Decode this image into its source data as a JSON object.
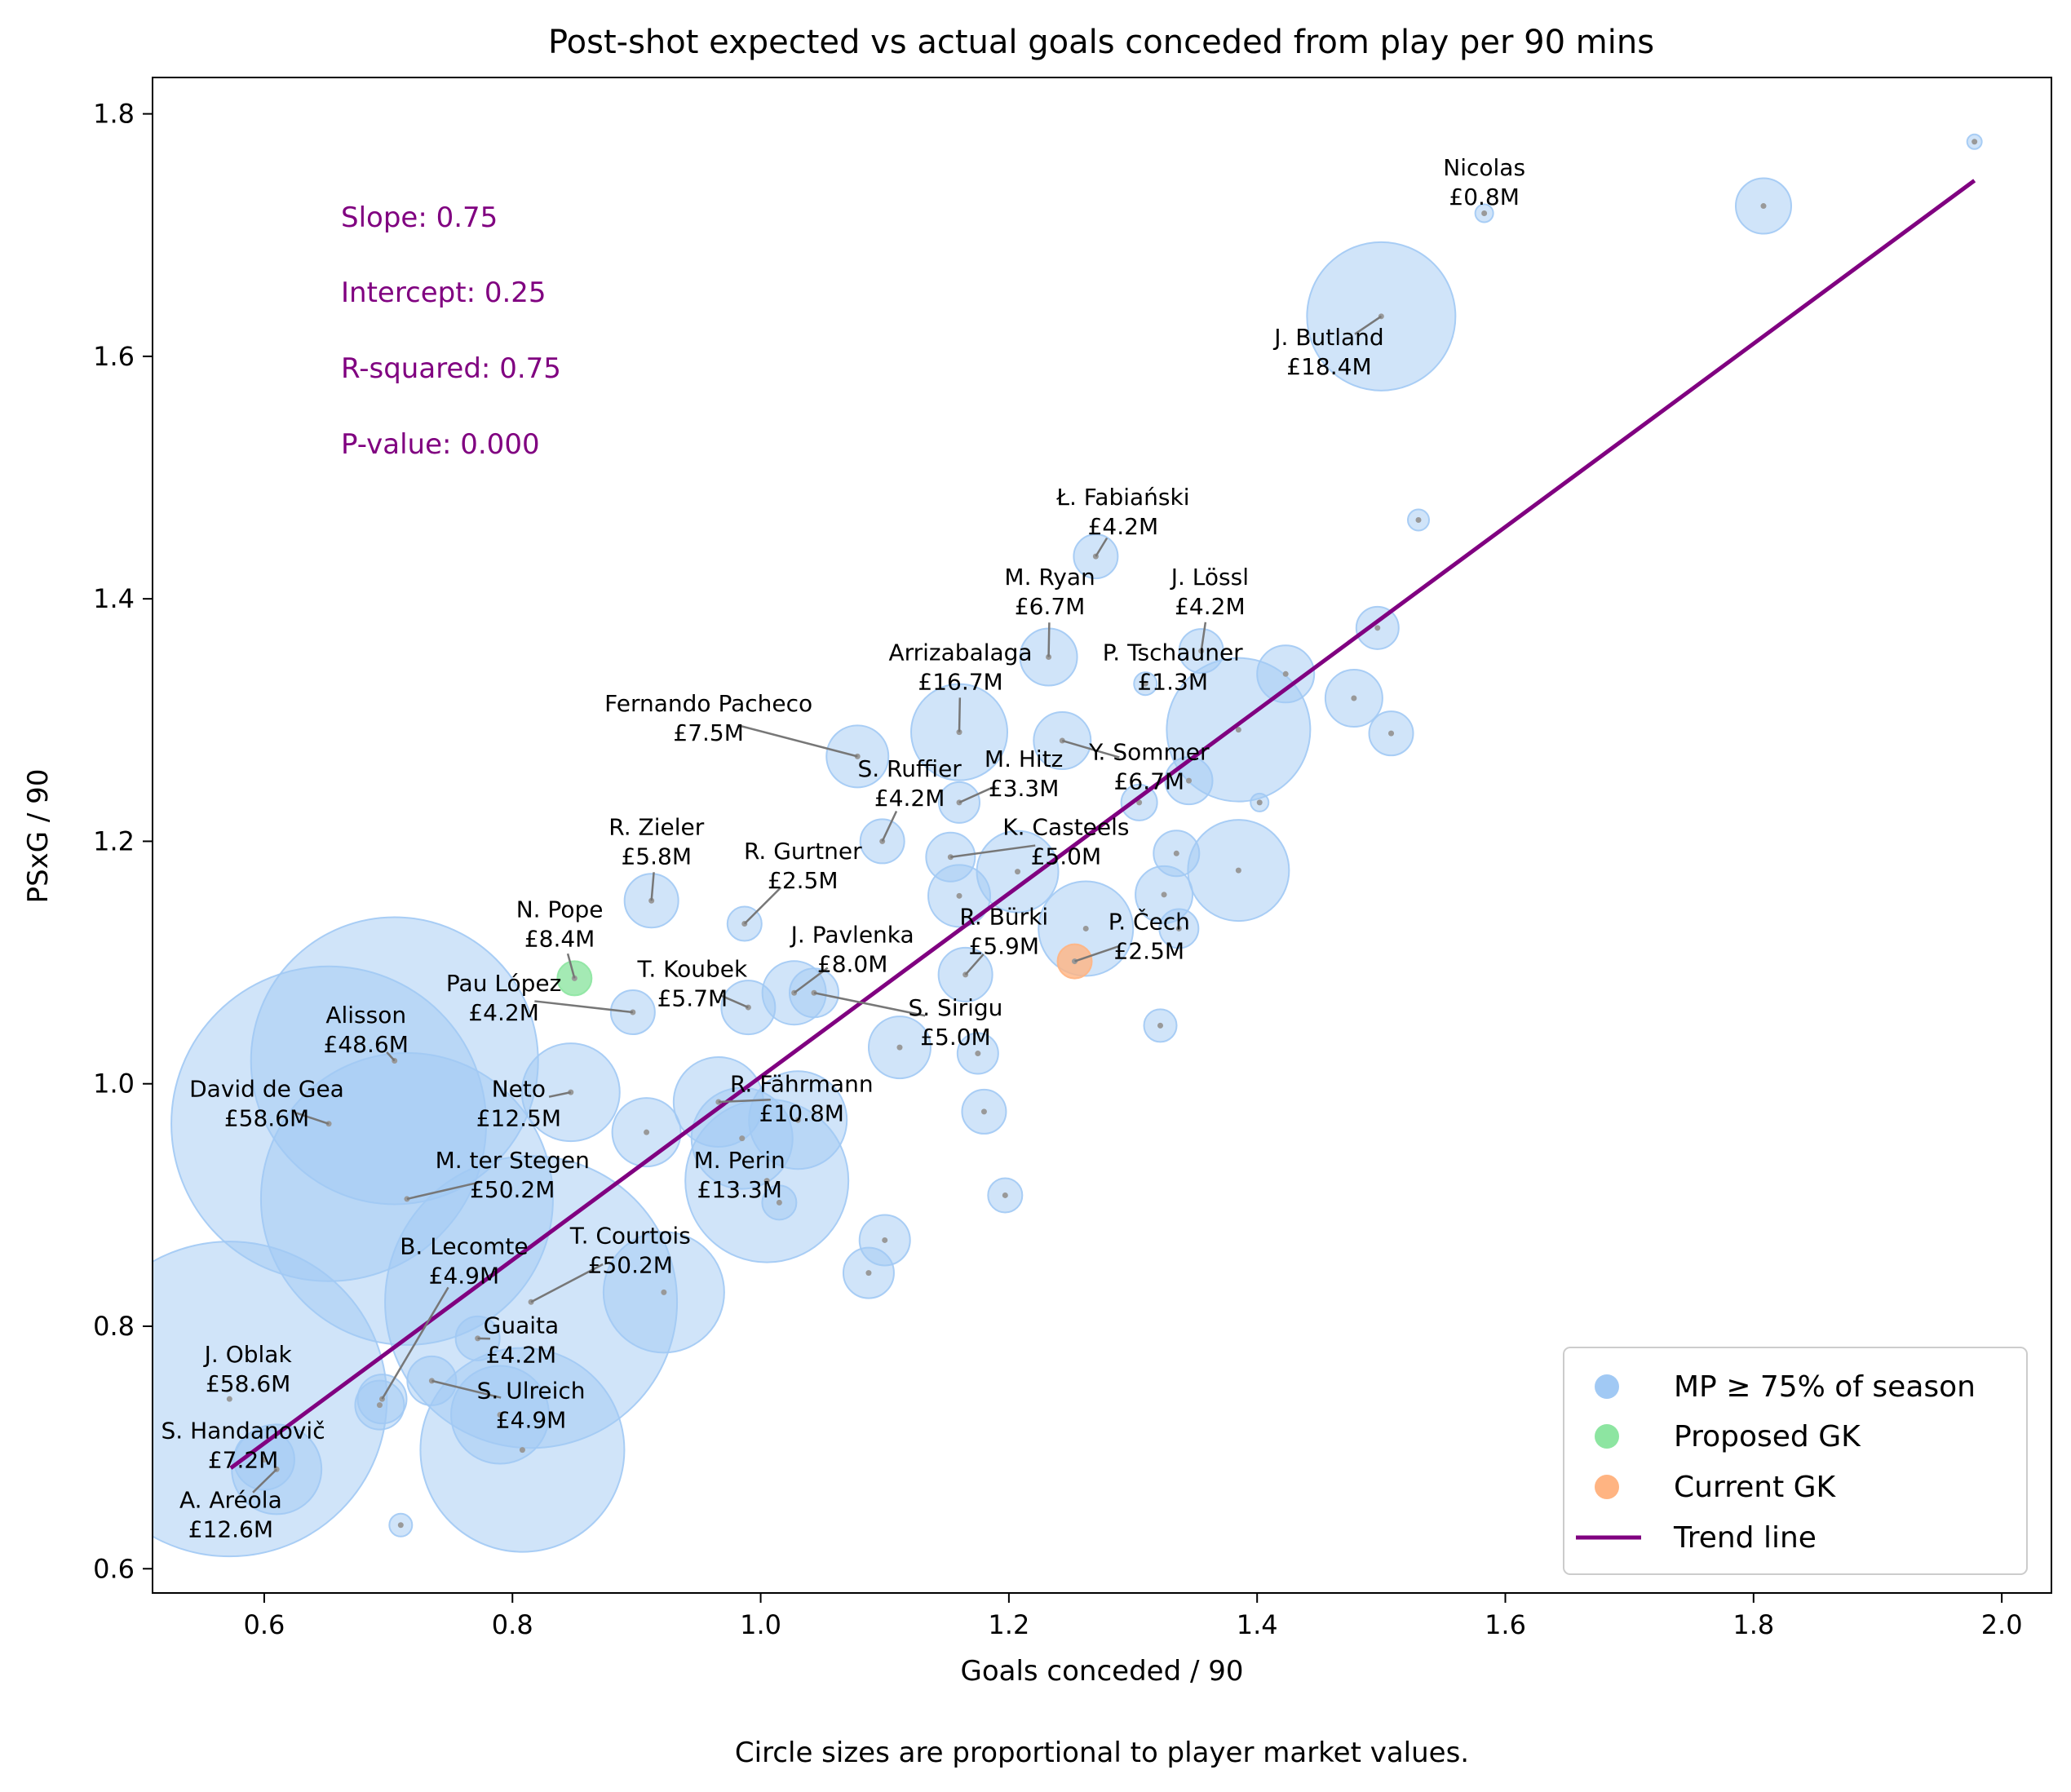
{
  "chart_data": {
    "type": "scatter",
    "title": "Post-shot expected vs actual goals conceded from play per 90 mins",
    "xlabel": "Goals conceded / 90",
    "ylabel": "PSxG / 90",
    "caption": "Circle sizes are proportional to player market values.",
    "xlim": [
      0.51,
      2.04
    ],
    "ylim": [
      0.58,
      1.83
    ],
    "xticks": [
      "0.6",
      "0.8",
      "1.0",
      "1.2",
      "1.4",
      "1.6",
      "1.8",
      "2.0"
    ],
    "yticks": [
      "0.6",
      "0.8",
      "1.0",
      "1.2",
      "1.4",
      "1.6",
      "1.8"
    ],
    "stats": [
      {
        "label": "Slope: 0.75"
      },
      {
        "label": "Intercept: 0.25"
      },
      {
        "label": "R-squared: 0.75"
      },
      {
        "label": "P-value: 0.000"
      }
    ],
    "trend_line": {
      "name": "Trend line",
      "color": "#800080",
      "x": [
        0.573,
        1.978
      ],
      "y": [
        0.683,
        1.745
      ]
    },
    "legend": [
      {
        "label": "MP ≥ 75% of season",
        "color": "#a1c9f4",
        "kind": "dot"
      },
      {
        "label": "Proposed GK",
        "color": "#8de5a1",
        "kind": "dot"
      },
      {
        "label": "Current GK",
        "color": "#ffb482",
        "kind": "dot"
      },
      {
        "label": "Trend line",
        "color": "#800080",
        "kind": "line"
      }
    ],
    "colors": {
      "regular": "#a1c9f4",
      "proposed": "#8de5a1",
      "current": "#ffb482",
      "trend": "#800080"
    },
    "labeled_points": [
      {
        "name": "Nicolas",
        "value": "£0.8M",
        "x": 1.583,
        "y": 1.718,
        "r": 11,
        "lx": 1.583,
        "ly": 1.744,
        "group": "regular"
      },
      {
        "name": "J. Butland",
        "value": "£18.4M",
        "x": 1.5,
        "y": 1.633,
        "r": 91,
        "lx": 1.458,
        "ly": 1.604,
        "group": "regular"
      },
      {
        "name": "Ł. Fabiański",
        "value": "£4.2M",
        "x": 1.27,
        "y": 1.435,
        "r": 27,
        "lx": 1.292,
        "ly": 1.472,
        "group": "regular"
      },
      {
        "name": "M. Ryan",
        "value": "£6.7M",
        "x": 1.232,
        "y": 1.352,
        "r": 35,
        "lx": 1.233,
        "ly": 1.406,
        "group": "regular"
      },
      {
        "name": "J. Lössl",
        "value": "£4.2M",
        "x": 1.355,
        "y": 1.357,
        "r": 27,
        "lx": 1.362,
        "ly": 1.406,
        "group": "regular"
      },
      {
        "name": "Arrizabalaga",
        "value": "£16.7M",
        "x": 1.16,
        "y": 1.29,
        "r": 59,
        "lx": 1.161,
        "ly": 1.344,
        "group": "regular"
      },
      {
        "name": "P. Tschauner",
        "value": "£1.3M",
        "x": 1.31,
        "y": 1.33,
        "r": 14,
        "lx": 1.332,
        "ly": 1.344,
        "group": "regular"
      },
      {
        "name": "Fernando Pacheco",
        "value": "£7.5M",
        "x": 1.078,
        "y": 1.27,
        "r": 38,
        "lx": 0.958,
        "ly": 1.302,
        "group": "regular"
      },
      {
        "name": "Y. Sommer",
        "value": "£6.7M",
        "x": 1.243,
        "y": 1.283,
        "r": 35,
        "lx": 1.313,
        "ly": 1.262,
        "group": "regular"
      },
      {
        "name": "S. Ruffier",
        "value": "£4.2M",
        "x": 1.098,
        "y": 1.2,
        "r": 27,
        "lx": 1.12,
        "ly": 1.248,
        "group": "regular"
      },
      {
        "name": "M. Hitz",
        "value": "£3.3M",
        "x": 1.16,
        "y": 1.232,
        "r": 25,
        "lx": 1.212,
        "ly": 1.256,
        "group": "regular"
      },
      {
        "name": "R. Zieler",
        "value": "£5.8M",
        "x": 0.912,
        "y": 1.151,
        "r": 33,
        "lx": 0.916,
        "ly": 1.2,
        "group": "regular"
      },
      {
        "name": "K. Casteels",
        "value": "£5.0M",
        "x": 1.153,
        "y": 1.187,
        "r": 30,
        "lx": 1.246,
        "ly": 1.2,
        "group": "regular"
      },
      {
        "name": "R. Gurtner",
        "value": "£2.5M",
        "x": 0.987,
        "y": 1.132,
        "r": 21,
        "lx": 1.034,
        "ly": 1.18,
        "group": "regular"
      },
      {
        "name": "N. Pope",
        "value": "£8.4M",
        "x": 0.85,
        "y": 1.087,
        "r": 21,
        "lx": 0.838,
        "ly": 1.132,
        "group": "proposed"
      },
      {
        "name": "R. Bürki",
        "value": "£5.9M",
        "x": 1.165,
        "y": 1.09,
        "r": 33,
        "lx": 1.196,
        "ly": 1.126,
        "group": "regular"
      },
      {
        "name": "P. Čech",
        "value": "£2.5M",
        "x": 1.253,
        "y": 1.101,
        "r": 21,
        "lx": 1.313,
        "ly": 1.122,
        "group": "current"
      },
      {
        "name": "J. Pavlenka",
        "value": "£8.0M",
        "x": 1.027,
        "y": 1.075,
        "r": 39,
        "lx": 1.074,
        "ly": 1.111,
        "group": "regular"
      },
      {
        "name": "T. Koubek",
        "value": "£5.7M",
        "x": 0.99,
        "y": 1.063,
        "r": 33,
        "lx": 0.945,
        "ly": 1.083,
        "group": "regular"
      },
      {
        "name": "Pau López",
        "value": "£4.2M",
        "x": 0.897,
        "y": 1.059,
        "r": 27,
        "lx": 0.793,
        "ly": 1.071,
        "group": "regular"
      },
      {
        "name": "S. Sirigu",
        "value": "£5.0M",
        "x": 1.043,
        "y": 1.075,
        "r": 30,
        "lx": 1.157,
        "ly": 1.051,
        "group": "regular"
      },
      {
        "name": "Alisson",
        "value": "£48.6M",
        "x": 0.705,
        "y": 1.019,
        "r": 176,
        "lx": 0.682,
        "ly": 1.045,
        "group": "regular"
      },
      {
        "name": "David de Gea",
        "value": "£58.6M",
        "x": 0.652,
        "y": 0.967,
        "r": 193,
        "lx": 0.602,
        "ly": 0.984,
        "group": "regular"
      },
      {
        "name": "Neto",
        "value": "£12.5M",
        "x": 0.847,
        "y": 0.993,
        "r": 60,
        "lx": 0.805,
        "ly": 0.984,
        "group": "regular"
      },
      {
        "name": "R. Fährmann",
        "value": "£10.8M",
        "x": 0.966,
        "y": 0.985,
        "r": 55,
        "lx": 1.033,
        "ly": 0.988,
        "group": "regular"
      },
      {
        "name": "M. ter Stegen",
        "value": "£50.2M",
        "x": 0.715,
        "y": 0.905,
        "r": 179,
        "lx": 0.8,
        "ly": 0.925,
        "group": "regular"
      },
      {
        "name": "M. Perin",
        "value": "£13.3M",
        "x": 0.985,
        "y": 0.955,
        "r": 62,
        "lx": 0.983,
        "ly": 0.925,
        "group": "regular"
      },
      {
        "name": "T. Courtois",
        "value": "£50.2M",
        "x": 0.815,
        "y": 0.82,
        "r": 179,
        "lx": 0.895,
        "ly": 0.863,
        "group": "regular"
      },
      {
        "name": "B. Lecomte",
        "value": "£4.9M",
        "x": 0.695,
        "y": 0.74,
        "r": 30,
        "lx": 0.761,
        "ly": 0.854,
        "group": "regular"
      },
      {
        "name": "Guaita",
        "value": "£4.2M",
        "x": 0.772,
        "y": 0.79,
        "r": 27,
        "lx": 0.807,
        "ly": 0.789,
        "group": "regular"
      },
      {
        "name": "J. Oblak",
        "value": "£58.6M",
        "x": 0.572,
        "y": 0.74,
        "r": 193,
        "lx": 0.587,
        "ly": 0.765,
        "group": "regular"
      },
      {
        "name": "S. Ulreich",
        "value": "£4.9M",
        "x": 0.735,
        "y": 0.755,
        "r": 30,
        "lx": 0.815,
        "ly": 0.735,
        "group": "regular"
      },
      {
        "name": "S. Handanovič",
        "value": "£7.2M",
        "x": 0.6,
        "y": 0.69,
        "r": 37,
        "lx": 0.583,
        "ly": 0.702,
        "group": "regular"
      },
      {
        "name": "A. Aréola",
        "value": "£12.6M",
        "x": 0.61,
        "y": 0.682,
        "r": 55,
        "lx": 0.573,
        "ly": 0.645,
        "group": "regular"
      }
    ],
    "other_points": [
      {
        "x": 1.978,
        "y": 1.777,
        "r": 9
      },
      {
        "x": 1.808,
        "y": 1.724,
        "r": 34
      },
      {
        "x": 1.53,
        "y": 1.465,
        "r": 13
      },
      {
        "x": 1.497,
        "y": 1.376,
        "r": 26
      },
      {
        "x": 1.423,
        "y": 1.338,
        "r": 35
      },
      {
        "x": 1.478,
        "y": 1.318,
        "r": 35
      },
      {
        "x": 1.508,
        "y": 1.289,
        "r": 27
      },
      {
        "x": 1.385,
        "y": 1.292,
        "r": 88
      },
      {
        "x": 1.345,
        "y": 1.25,
        "r": 29
      },
      {
        "x": 1.305,
        "y": 1.232,
        "r": 22
      },
      {
        "x": 1.402,
        "y": 1.232,
        "r": 11
      },
      {
        "x": 1.335,
        "y": 1.19,
        "r": 28
      },
      {
        "x": 1.385,
        "y": 1.176,
        "r": 62
      },
      {
        "x": 1.325,
        "y": 1.156,
        "r": 35
      },
      {
        "x": 1.337,
        "y": 1.128,
        "r": 24
      },
      {
        "x": 1.262,
        "y": 1.128,
        "r": 58
      },
      {
        "x": 1.207,
        "y": 1.175,
        "r": 50
      },
      {
        "x": 1.16,
        "y": 1.155,
        "r": 38
      },
      {
        "x": 1.112,
        "y": 1.03,
        "r": 38
      },
      {
        "x": 1.175,
        "y": 1.025,
        "r": 25
      },
      {
        "x": 1.18,
        "y": 0.977,
        "r": 27
      },
      {
        "x": 1.322,
        "y": 1.048,
        "r": 20
      },
      {
        "x": 1.197,
        "y": 0.908,
        "r": 21
      },
      {
        "x": 1.1,
        "y": 0.871,
        "r": 31
      },
      {
        "x": 1.087,
        "y": 0.844,
        "r": 31
      },
      {
        "x": 1.015,
        "y": 0.902,
        "r": 21
      },
      {
        "x": 1.005,
        "y": 0.92,
        "r": 100
      },
      {
        "x": 1.03,
        "y": 0.97,
        "r": 60
      },
      {
        "x": 0.908,
        "y": 0.96,
        "r": 42
      },
      {
        "x": 0.922,
        "y": 0.828,
        "r": 74
      },
      {
        "x": 0.808,
        "y": 0.698,
        "r": 125
      },
      {
        "x": 0.79,
        "y": 0.727,
        "r": 60
      },
      {
        "x": 0.693,
        "y": 0.735,
        "r": 30
      },
      {
        "x": 0.71,
        "y": 0.636,
        "r": 14
      }
    ]
  }
}
